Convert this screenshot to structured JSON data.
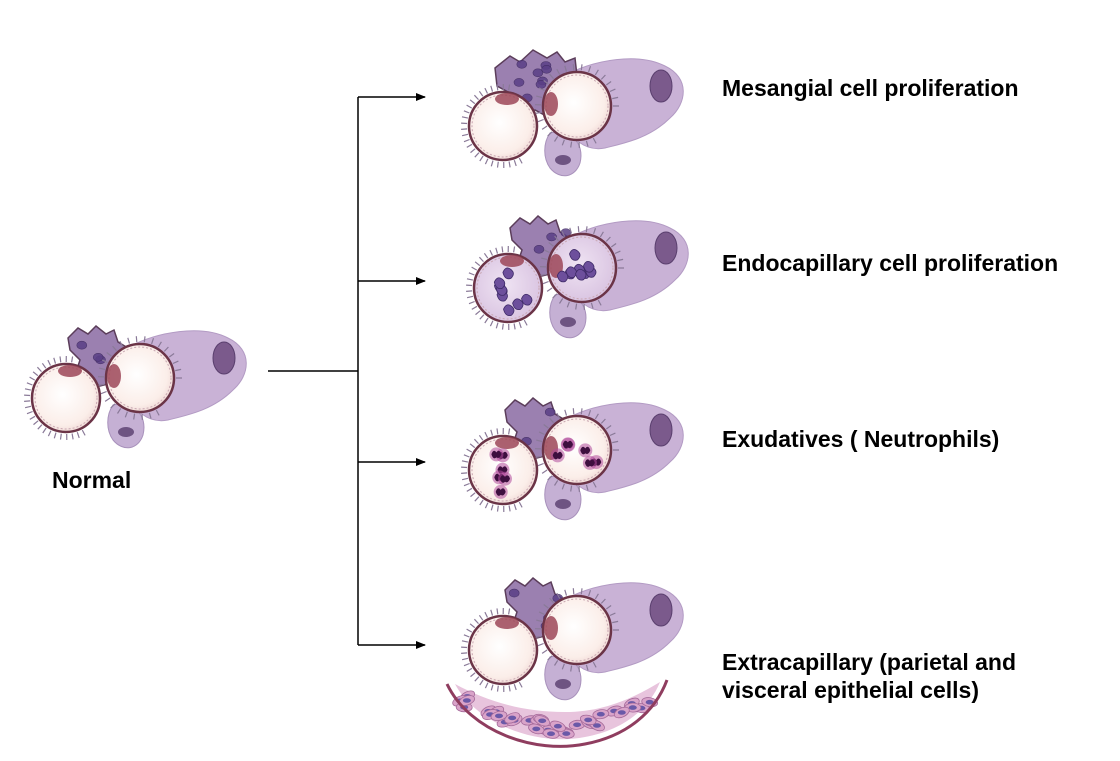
{
  "normal_label": "Normal",
  "outcomes": [
    {
      "lines": [
        "Mesangial cell proliferation"
      ],
      "variant": "mesangial"
    },
    {
      "lines": [
        "Endocapillary cell proliferation"
      ],
      "variant": "endocapillary"
    },
    {
      "lines": [
        "Exudatives ( Neutrophils)"
      ],
      "variant": "neutrophils"
    },
    {
      "lines": [
        "Extracapillary (parietal and",
        "visceral epithelial cells)"
      ],
      "variant": "extracapillary"
    }
  ],
  "colors": {
    "arrow": "#000000",
    "capillary_fill": "#fdf1ec",
    "capillary_rim": "#6b3447",
    "mesangium": "#9b80b0",
    "podocyte": "#c9b2d6",
    "endothelial_nucleus": "#9c4658",
    "cell_nucleus": "#5a3f86",
    "neutrophil": "#3e0f3f",
    "crescent_cell": "#d9a3c9"
  }
}
